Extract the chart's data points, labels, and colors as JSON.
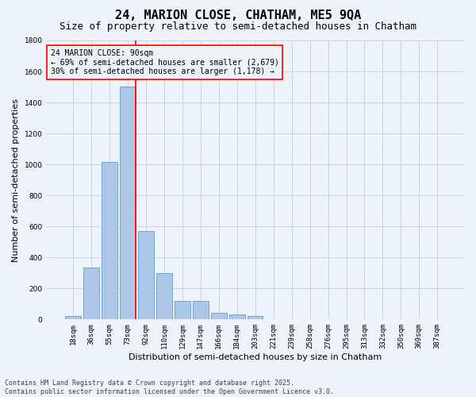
{
  "title": "24, MARION CLOSE, CHATHAM, ME5 9QA",
  "subtitle": "Size of property relative to semi-detached houses in Chatham",
  "xlabel": "Distribution of semi-detached houses by size in Chatham",
  "ylabel": "Number of semi-detached properties",
  "categories": [
    "18sqm",
    "36sqm",
    "55sqm",
    "73sqm",
    "92sqm",
    "110sqm",
    "129sqm",
    "147sqm",
    "166sqm",
    "184sqm",
    "203sqm",
    "221sqm",
    "239sqm",
    "258sqm",
    "276sqm",
    "295sqm",
    "313sqm",
    "332sqm",
    "350sqm",
    "369sqm",
    "387sqm"
  ],
  "values": [
    20,
    335,
    1015,
    1505,
    570,
    300,
    120,
    120,
    45,
    30,
    20,
    0,
    0,
    0,
    0,
    0,
    0,
    0,
    0,
    0,
    0
  ],
  "bar_color": "#aec6e8",
  "bar_edge_color": "#5a9fd4",
  "background_color": "#eef2fb",
  "grid_color": "#c8d4ee",
  "vline_x_idx": 3,
  "vline_color": "red",
  "annotation_title": "24 MARION CLOSE: 90sqm",
  "annotation_line1": "← 69% of semi-detached houses are smaller (2,679)",
  "annotation_line2": "30% of semi-detached houses are larger (1,178) →",
  "annotation_box_color": "red",
  "ylim": [
    0,
    1800
  ],
  "yticks": [
    0,
    200,
    400,
    600,
    800,
    1000,
    1200,
    1400,
    1600,
    1800
  ],
  "footer_line1": "Contains HM Land Registry data © Crown copyright and database right 2025.",
  "footer_line2": "Contains public sector information licensed under the Open Government Licence v3.0.",
  "title_fontsize": 11,
  "subtitle_fontsize": 9,
  "axis_label_fontsize": 8,
  "tick_fontsize": 6.5,
  "annotation_fontsize": 7,
  "footer_fontsize": 6
}
